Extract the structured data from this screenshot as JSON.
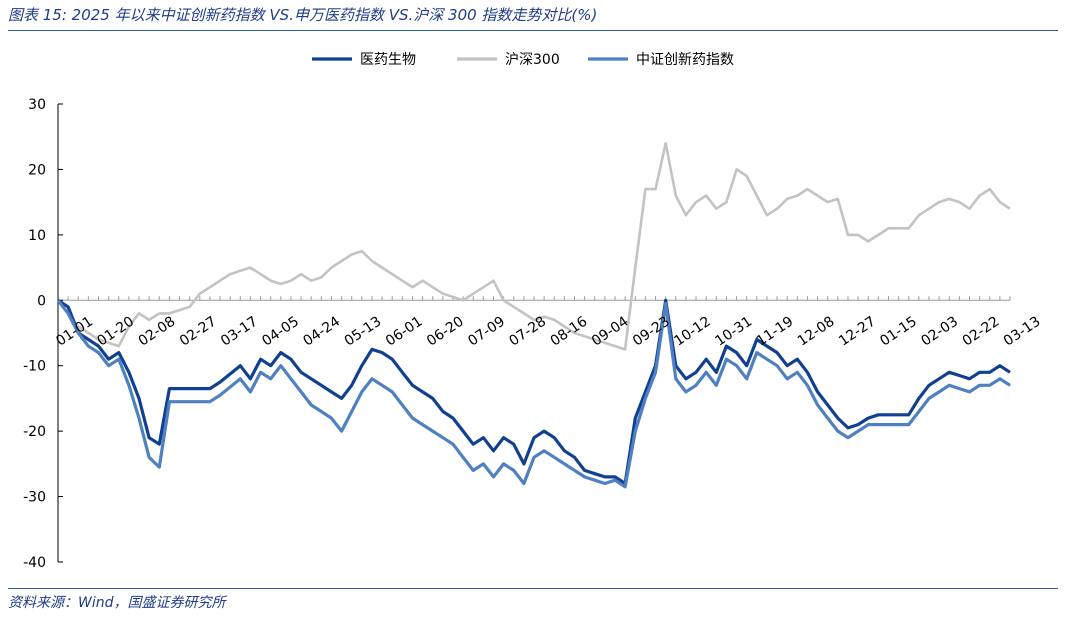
{
  "title": "图表 15: 2025 年以来中证创新药指数 VS.申万医药指数 VS.沪深 300 指数走势对比(%)",
  "source": "资料来源：Wind，国盛证券研究所",
  "colors": {
    "frame": "#2f5aa8",
    "text": "#1f3c88",
    "axis": "#000000"
  },
  "chart_data": {
    "type": "line",
    "title": "",
    "xlabel": "",
    "ylabel": "",
    "ylim": [
      -40,
      30
    ],
    "y_ticks": [
      "30",
      "20",
      "10",
      "0",
      "-10",
      "-20",
      "-30",
      "-40"
    ],
    "x_tick_labels": [
      "01-01",
      "01-20",
      "02-08",
      "02-27",
      "03-17",
      "04-05",
      "04-24",
      "05-13",
      "06-01",
      "06-20",
      "07-09",
      "07-28",
      "08-16",
      "09-04",
      "09-23",
      "10-12",
      "10-31",
      "11-19",
      "12-08",
      "12-27",
      "01-15",
      "02-03",
      "02-22",
      "03-13"
    ],
    "legend_position": "top-center",
    "series": [
      {
        "name": "医药生物",
        "color": "#10408f",
        "width": 3.2,
        "points": [
          [
            0,
            0
          ],
          [
            1,
            -1
          ],
          [
            2,
            -5
          ],
          [
            3,
            -6
          ],
          [
            4,
            -7
          ],
          [
            5,
            -9
          ],
          [
            6,
            -8
          ],
          [
            7,
            -11
          ],
          [
            8,
            -15
          ],
          [
            9,
            -21
          ],
          [
            10,
            -22
          ],
          [
            11,
            -13.5
          ],
          [
            13,
            -13.5
          ],
          [
            15,
            -13.5
          ],
          [
            16,
            -12.5
          ],
          [
            18,
            -10
          ],
          [
            19,
            -12
          ],
          [
            20,
            -9
          ],
          [
            21,
            -10
          ],
          [
            22,
            -8
          ],
          [
            23,
            -9
          ],
          [
            24,
            -11
          ],
          [
            25,
            -12
          ],
          [
            26,
            -13
          ],
          [
            27,
            -14
          ],
          [
            28,
            -15
          ],
          [
            29,
            -13
          ],
          [
            30,
            -10
          ],
          [
            31,
            -7.5
          ],
          [
            32,
            -8
          ],
          [
            33,
            -9
          ],
          [
            34,
            -11
          ],
          [
            35,
            -13
          ],
          [
            36,
            -14
          ],
          [
            37,
            -15
          ],
          [
            38,
            -17
          ],
          [
            39,
            -18
          ],
          [
            40,
            -20
          ],
          [
            41,
            -22
          ],
          [
            42,
            -21
          ],
          [
            43,
            -23
          ],
          [
            44,
            -21
          ],
          [
            45,
            -22
          ],
          [
            46,
            -25
          ],
          [
            47,
            -21
          ],
          [
            48,
            -20
          ],
          [
            49,
            -21
          ],
          [
            50,
            -23
          ],
          [
            51,
            -24
          ],
          [
            52,
            -26
          ],
          [
            53,
            -26.5
          ],
          [
            54,
            -27
          ],
          [
            55,
            -27
          ],
          [
            56,
            -28
          ],
          [
            57,
            -18
          ],
          [
            58,
            -14
          ],
          [
            59,
            -10
          ],
          [
            60,
            0
          ],
          [
            61,
            -10
          ],
          [
            62,
            -12
          ],
          [
            63,
            -11
          ],
          [
            64,
            -9
          ],
          [
            65,
            -11
          ],
          [
            66,
            -7
          ],
          [
            67,
            -8
          ],
          [
            68,
            -10
          ],
          [
            69,
            -6
          ],
          [
            70,
            -7
          ],
          [
            71,
            -8
          ],
          [
            72,
            -10
          ],
          [
            73,
            -9
          ],
          [
            74,
            -11
          ],
          [
            75,
            -14
          ],
          [
            76,
            -16
          ],
          [
            77,
            -18
          ],
          [
            78,
            -19.5
          ],
          [
            79,
            -19
          ],
          [
            80,
            -18
          ],
          [
            81,
            -17.5
          ],
          [
            82,
            -17.5
          ],
          [
            84,
            -17.5
          ],
          [
            85,
            -15
          ],
          [
            86,
            -13
          ],
          [
            87,
            -12
          ],
          [
            88,
            -11
          ],
          [
            89,
            -11.5
          ],
          [
            90,
            -12
          ],
          [
            91,
            -11
          ],
          [
            92,
            -11
          ],
          [
            93,
            -10
          ],
          [
            94,
            -11
          ]
        ]
      },
      {
        "name": "沪深300",
        "color": "#c3c3c3",
        "width": 2.6,
        "points": [
          [
            0,
            0
          ],
          [
            1,
            -2
          ],
          [
            2,
            -4
          ],
          [
            3,
            -5
          ],
          [
            4,
            -6
          ],
          [
            5,
            -6.5
          ],
          [
            6,
            -7
          ],
          [
            7,
            -4
          ],
          [
            8,
            -2
          ],
          [
            9,
            -3
          ],
          [
            10,
            -2
          ],
          [
            11,
            -2
          ],
          [
            12,
            -1.5
          ],
          [
            13,
            -1
          ],
          [
            14,
            1
          ],
          [
            15,
            2
          ],
          [
            16,
            3
          ],
          [
            17,
            4
          ],
          [
            18,
            4.5
          ],
          [
            19,
            5
          ],
          [
            20,
            4
          ],
          [
            21,
            3
          ],
          [
            22,
            2.5
          ],
          [
            23,
            3
          ],
          [
            24,
            4
          ],
          [
            25,
            3
          ],
          [
            26,
            3.5
          ],
          [
            27,
            5
          ],
          [
            28,
            6
          ],
          [
            29,
            7
          ],
          [
            30,
            7.5
          ],
          [
            31,
            6
          ],
          [
            32,
            5
          ],
          [
            33,
            4
          ],
          [
            34,
            3
          ],
          [
            35,
            2
          ],
          [
            36,
            3
          ],
          [
            37,
            2
          ],
          [
            38,
            1
          ],
          [
            39,
            0.5
          ],
          [
            40,
            0
          ],
          [
            41,
            1
          ],
          [
            42,
            2
          ],
          [
            43,
            3
          ],
          [
            44,
            0
          ],
          [
            45,
            -1
          ],
          [
            46,
            -2
          ],
          [
            47,
            -3
          ],
          [
            48,
            -2.5
          ],
          [
            49,
            -3
          ],
          [
            50,
            -4
          ],
          [
            51,
            -5
          ],
          [
            52,
            -5.5
          ],
          [
            53,
            -6
          ],
          [
            54,
            -6.5
          ],
          [
            55,
            -7
          ],
          [
            56,
            -7.5
          ],
          [
            57,
            5
          ],
          [
            58,
            17
          ],
          [
            59,
            17
          ],
          [
            60,
            24
          ],
          [
            61,
            16
          ],
          [
            62,
            13
          ],
          [
            63,
            15
          ],
          [
            64,
            16
          ],
          [
            65,
            14
          ],
          [
            66,
            15
          ],
          [
            67,
            20
          ],
          [
            68,
            19
          ],
          [
            69,
            16
          ],
          [
            70,
            13
          ],
          [
            71,
            14
          ],
          [
            72,
            15.5
          ],
          [
            73,
            16
          ],
          [
            74,
            17
          ],
          [
            75,
            16
          ],
          [
            76,
            15
          ],
          [
            77,
            15.5
          ],
          [
            78,
            10
          ],
          [
            79,
            10
          ],
          [
            80,
            9
          ],
          [
            81,
            10
          ],
          [
            82,
            11
          ],
          [
            83,
            11
          ],
          [
            84,
            11
          ],
          [
            85,
            13
          ],
          [
            86,
            14
          ],
          [
            87,
            15
          ],
          [
            88,
            15.5
          ],
          [
            89,
            15
          ],
          [
            90,
            14
          ],
          [
            91,
            16
          ],
          [
            92,
            17
          ],
          [
            93,
            15
          ],
          [
            94,
            14
          ]
        ]
      },
      {
        "name": "中证创新药指数",
        "color": "#4f80c1",
        "width": 3.2,
        "points": [
          [
            0,
            0
          ],
          [
            1,
            -2
          ],
          [
            2,
            -5
          ],
          [
            3,
            -7
          ],
          [
            4,
            -8
          ],
          [
            5,
            -10
          ],
          [
            6,
            -9
          ],
          [
            7,
            -13
          ],
          [
            8,
            -18
          ],
          [
            9,
            -24
          ],
          [
            10,
            -25.5
          ],
          [
            11,
            -15.5
          ],
          [
            13,
            -15.5
          ],
          [
            15,
            -15.5
          ],
          [
            16,
            -14.5
          ],
          [
            18,
            -12
          ],
          [
            19,
            -14
          ],
          [
            20,
            -11
          ],
          [
            21,
            -12
          ],
          [
            22,
            -10
          ],
          [
            23,
            -12
          ],
          [
            24,
            -14
          ],
          [
            25,
            -16
          ],
          [
            26,
            -17
          ],
          [
            27,
            -18
          ],
          [
            28,
            -20
          ],
          [
            29,
            -17
          ],
          [
            30,
            -14
          ],
          [
            31,
            -12
          ],
          [
            32,
            -13
          ],
          [
            33,
            -14
          ],
          [
            34,
            -16
          ],
          [
            35,
            -18
          ],
          [
            36,
            -19
          ],
          [
            37,
            -20
          ],
          [
            38,
            -21
          ],
          [
            39,
            -22
          ],
          [
            40,
            -24
          ],
          [
            41,
            -26
          ],
          [
            42,
            -25
          ],
          [
            43,
            -27
          ],
          [
            44,
            -25
          ],
          [
            45,
            -26
          ],
          [
            46,
            -28
          ],
          [
            47,
            -24
          ],
          [
            48,
            -23
          ],
          [
            49,
            -24
          ],
          [
            50,
            -25
          ],
          [
            51,
            -26
          ],
          [
            52,
            -27
          ],
          [
            53,
            -27.5
          ],
          [
            54,
            -28
          ],
          [
            55,
            -27.5
          ],
          [
            56,
            -28.5
          ],
          [
            57,
            -20
          ],
          [
            58,
            -15
          ],
          [
            59,
            -11
          ],
          [
            60,
            -0.5
          ],
          [
            61,
            -12
          ],
          [
            62,
            -14
          ],
          [
            63,
            -13
          ],
          [
            64,
            -11
          ],
          [
            65,
            -13
          ],
          [
            66,
            -9
          ],
          [
            67,
            -10
          ],
          [
            68,
            -12
          ],
          [
            69,
            -8
          ],
          [
            70,
            -9
          ],
          [
            71,
            -10
          ],
          [
            72,
            -12
          ],
          [
            73,
            -11
          ],
          [
            74,
            -13
          ],
          [
            75,
            -16
          ],
          [
            76,
            -18
          ],
          [
            77,
            -20
          ],
          [
            78,
            -21
          ],
          [
            79,
            -20
          ],
          [
            80,
            -19
          ],
          [
            81,
            -19
          ],
          [
            82,
            -19
          ],
          [
            84,
            -19
          ],
          [
            85,
            -17
          ],
          [
            86,
            -15
          ],
          [
            87,
            -14
          ],
          [
            88,
            -13
          ],
          [
            89,
            -13.5
          ],
          [
            90,
            -14
          ],
          [
            91,
            -13
          ],
          [
            92,
            -13
          ],
          [
            93,
            -12
          ],
          [
            94,
            -13
          ]
        ]
      }
    ]
  }
}
